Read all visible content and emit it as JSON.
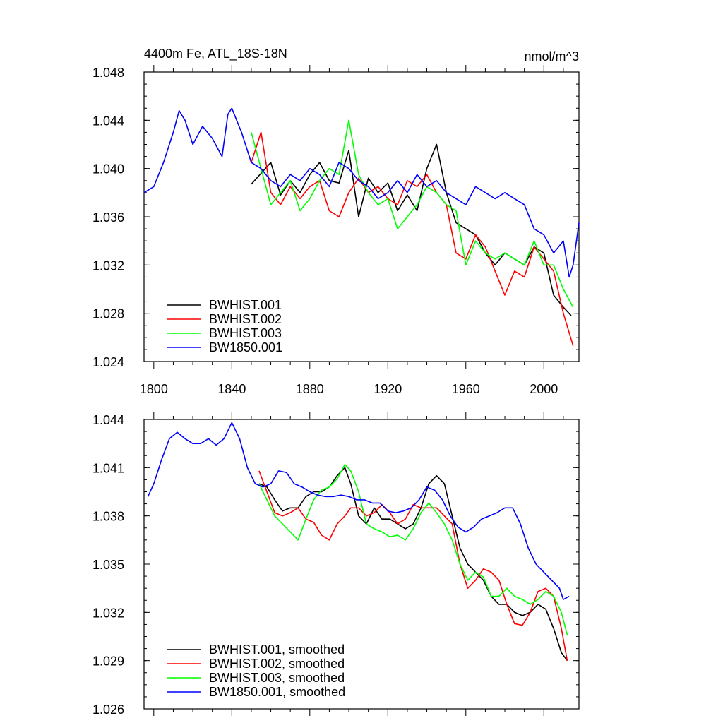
{
  "chart_data": [
    {
      "type": "line",
      "title": "4400m Fe, ATL_18S-18N",
      "units": "nmol/m^3",
      "xlim": [
        1795,
        2018
      ],
      "ylim": [
        1.024,
        1.048
      ],
      "x_ticks": [
        1800,
        1840,
        1880,
        1920,
        1960,
        2000
      ],
      "y_ticks": [
        1.024,
        1.028,
        1.032,
        1.036,
        1.04,
        1.044,
        1.048
      ],
      "y_tick_labels": [
        "1.024",
        "1.028",
        "1.032",
        "1.036",
        "1.040",
        "1.044",
        "1.048"
      ],
      "x_tick_labels": [
        "1800",
        "1840",
        "1880",
        "1920",
        "1960",
        "2000"
      ],
      "legend_position": "bottom-left",
      "series": [
        {
          "name": "BWHIST.001",
          "color": "#000000",
          "x": [
            1850,
            1855,
            1860,
            1865,
            1870,
            1875,
            1880,
            1885,
            1890,
            1895,
            1900,
            1905,
            1910,
            1915,
            1920,
            1925,
            1930,
            1935,
            1940,
            1945,
            1950,
            1955,
            1960,
            1965,
            1970,
            1975,
            1980,
            1985,
            1990,
            1995,
            2000,
            2005,
            2010,
            2014
          ],
          "values": [
            1.0387,
            1.0396,
            1.0405,
            1.0378,
            1.039,
            1.038,
            1.0395,
            1.0405,
            1.039,
            1.0388,
            1.0415,
            1.036,
            1.0392,
            1.038,
            1.0388,
            1.0365,
            1.0378,
            1.0365,
            1.04,
            1.042,
            1.038,
            1.0355,
            1.035,
            1.0345,
            1.033,
            1.032,
            1.033,
            1.0325,
            1.032,
            1.0335,
            1.033,
            1.0295,
            1.0285,
            1.0278
          ]
        },
        {
          "name": "BWHIST.002",
          "color": "#ff0000",
          "x": [
            1850,
            1855,
            1860,
            1865,
            1870,
            1875,
            1880,
            1885,
            1890,
            1895,
            1900,
            1905,
            1910,
            1915,
            1920,
            1925,
            1930,
            1935,
            1940,
            1945,
            1950,
            1955,
            1960,
            1965,
            1970,
            1975,
            1980,
            1985,
            1990,
            1995,
            2000,
            2005,
            2010,
            2015
          ],
          "values": [
            1.0405,
            1.043,
            1.038,
            1.037,
            1.0385,
            1.0375,
            1.0385,
            1.039,
            1.0365,
            1.036,
            1.038,
            1.0392,
            1.038,
            1.0385,
            1.0375,
            1.037,
            1.039,
            1.0385,
            1.0395,
            1.038,
            1.037,
            1.033,
            1.0325,
            1.0345,
            1.0335,
            1.0315,
            1.0295,
            1.0315,
            1.031,
            1.0335,
            1.0325,
            1.0315,
            1.028,
            1.0253
          ]
        },
        {
          "name": "BWHIST.003",
          "color": "#00ff00",
          "x": [
            1850,
            1855,
            1860,
            1865,
            1870,
            1875,
            1880,
            1885,
            1890,
            1895,
            1900,
            1905,
            1910,
            1915,
            1920,
            1925,
            1930,
            1935,
            1940,
            1945,
            1950,
            1955,
            1960,
            1965,
            1970,
            1975,
            1980,
            1985,
            1990,
            1995,
            2000,
            2005,
            2010,
            2015
          ],
          "values": [
            1.043,
            1.04,
            1.037,
            1.038,
            1.039,
            1.0365,
            1.0375,
            1.039,
            1.04,
            1.0395,
            1.044,
            1.0395,
            1.038,
            1.037,
            1.0375,
            1.035,
            1.036,
            1.037,
            1.0385,
            1.038,
            1.037,
            1.0365,
            1.032,
            1.034,
            1.033,
            1.0325,
            1.033,
            1.0325,
            1.032,
            1.034,
            1.032,
            1.032,
            1.03,
            1.0285
          ]
        },
        {
          "name": "BW1850.001",
          "color": "#0000ff",
          "x": [
            1795,
            1800,
            1805,
            1810,
            1813,
            1816,
            1820,
            1825,
            1830,
            1835,
            1838,
            1840,
            1845,
            1850,
            1855,
            1860,
            1865,
            1870,
            1875,
            1880,
            1885,
            1890,
            1895,
            1900,
            1905,
            1910,
            1915,
            1920,
            1925,
            1930,
            1935,
            1940,
            1945,
            1950,
            1955,
            1960,
            1965,
            1970,
            1975,
            1980,
            1985,
            1990,
            1995,
            2000,
            2005,
            2010,
            2013,
            2015,
            2018
          ],
          "values": [
            1.038,
            1.0385,
            1.0405,
            1.043,
            1.0448,
            1.044,
            1.042,
            1.0435,
            1.0425,
            1.041,
            1.0445,
            1.045,
            1.043,
            1.0405,
            1.04,
            1.039,
            1.0385,
            1.0395,
            1.039,
            1.04,
            1.0395,
            1.0385,
            1.0405,
            1.04,
            1.039,
            1.0385,
            1.0375,
            1.038,
            1.039,
            1.038,
            1.0395,
            1.0385,
            1.039,
            1.038,
            1.0375,
            1.037,
            1.0385,
            1.038,
            1.0375,
            1.038,
            1.0375,
            1.037,
            1.035,
            1.0345,
            1.033,
            1.034,
            1.031,
            1.032,
            1.0355
          ]
        }
      ]
    },
    {
      "type": "line",
      "title": "",
      "xlim": [
        1795,
        2018
      ],
      "ylim": [
        1.026,
        1.044
      ],
      "x_ticks": [
        1800,
        1840,
        1880,
        1920,
        1960,
        2000
      ],
      "y_ticks": [
        1.026,
        1.029,
        1.032,
        1.035,
        1.038,
        1.041,
        1.044
      ],
      "y_tick_labels": [
        "1.026",
        "1.029",
        "1.032",
        "1.035",
        "1.038",
        "1.041",
        "1.044"
      ],
      "legend_position": "bottom-left",
      "series": [
        {
          "name": "BWHIST.001, smoothed",
          "color": "#000000",
          "x": [
            1854,
            1858,
            1862,
            1866,
            1870,
            1874,
            1878,
            1882,
            1886,
            1890,
            1894,
            1898,
            1901,
            1905,
            1909,
            1913,
            1917,
            1921,
            1925,
            1929,
            1933,
            1937,
            1941,
            1945,
            1949,
            1953,
            1957,
            1961,
            1965,
            1969,
            1973,
            1977,
            1981,
            1985,
            1989,
            1993,
            1997,
            2001,
            2005,
            2009,
            2012
          ],
          "values": [
            1.04,
            1.0398,
            1.039,
            1.0383,
            1.0385,
            1.0385,
            1.0392,
            1.0395,
            1.0395,
            1.0398,
            1.0405,
            1.041,
            1.04,
            1.038,
            1.0375,
            1.0385,
            1.0378,
            1.0378,
            1.0375,
            1.0372,
            1.0375,
            1.0385,
            1.04,
            1.0405,
            1.04,
            1.038,
            1.036,
            1.035,
            1.0345,
            1.034,
            1.033,
            1.0325,
            1.0325,
            1.032,
            1.0318,
            1.032,
            1.0325,
            1.0322,
            1.031,
            1.0295,
            1.029
          ]
        },
        {
          "name": "BWHIST.002, smoothed",
          "color": "#ff0000",
          "x": [
            1854,
            1858,
            1862,
            1866,
            1870,
            1874,
            1878,
            1882,
            1886,
            1890,
            1894,
            1898,
            1901,
            1905,
            1909,
            1913,
            1917,
            1921,
            1925,
            1929,
            1933,
            1937,
            1941,
            1945,
            1949,
            1953,
            1957,
            1961,
            1965,
            1969,
            1973,
            1977,
            1981,
            1985,
            1989,
            1993,
            1997,
            2001,
            2005,
            2009,
            2012
          ],
          "values": [
            1.0408,
            1.0395,
            1.0382,
            1.038,
            1.0382,
            1.0385,
            1.0378,
            1.0376,
            1.0368,
            1.0365,
            1.0375,
            1.038,
            1.0385,
            1.0385,
            1.038,
            1.0382,
            1.0387,
            1.0382,
            1.0375,
            1.0378,
            1.0387,
            1.0385,
            1.0385,
            1.0385,
            1.038,
            1.0375,
            1.035,
            1.0335,
            1.034,
            1.0347,
            1.0345,
            1.034,
            1.0325,
            1.0313,
            1.0312,
            1.032,
            1.0333,
            1.0335,
            1.033,
            1.031,
            1.029
          ]
        },
        {
          "name": "BWHIST.003, smoothed",
          "color": "#00ff00",
          "x": [
            1854,
            1858,
            1862,
            1866,
            1870,
            1874,
            1878,
            1882,
            1886,
            1890,
            1894,
            1898,
            1901,
            1905,
            1909,
            1913,
            1917,
            1921,
            1925,
            1929,
            1933,
            1937,
            1941,
            1945,
            1949,
            1953,
            1957,
            1961,
            1965,
            1969,
            1973,
            1977,
            1981,
            1985,
            1989,
            1993,
            1997,
            2001,
            2005,
            2009,
            2012
          ],
          "values": [
            1.04,
            1.039,
            1.038,
            1.0375,
            1.037,
            1.0365,
            1.0378,
            1.039,
            1.0396,
            1.0398,
            1.0403,
            1.0412,
            1.0408,
            1.0395,
            1.0375,
            1.0372,
            1.037,
            1.0367,
            1.0368,
            1.0365,
            1.0372,
            1.0382,
            1.0388,
            1.0382,
            1.0375,
            1.0365,
            1.035,
            1.034,
            1.0345,
            1.0342,
            1.033,
            1.033,
            1.0335,
            1.033,
            1.0328,
            1.0325,
            1.0328,
            1.0333,
            1.033,
            1.032,
            1.0306
          ]
        },
        {
          "name": "BW1850.001, smoothed",
          "color": "#0000ff",
          "x": [
            1797,
            1800,
            1804,
            1808,
            1812,
            1816,
            1820,
            1824,
            1828,
            1832,
            1836,
            1840,
            1844,
            1848,
            1852,
            1856,
            1860,
            1864,
            1868,
            1872,
            1876,
            1880,
            1884,
            1888,
            1892,
            1896,
            1900,
            1904,
            1908,
            1912,
            1916,
            1920,
            1924,
            1928,
            1932,
            1936,
            1940,
            1944,
            1948,
            1952,
            1956,
            1960,
            1964,
            1968,
            1972,
            1976,
            1980,
            1984,
            1988,
            1992,
            1996,
            2000,
            2004,
            2008,
            2010,
            2013
          ],
          "values": [
            1.0392,
            1.04,
            1.0415,
            1.0428,
            1.0432,
            1.0428,
            1.0425,
            1.0425,
            1.0428,
            1.0424,
            1.0428,
            1.0438,
            1.0428,
            1.041,
            1.04,
            1.0398,
            1.04,
            1.0408,
            1.0407,
            1.04,
            1.0398,
            1.0395,
            1.0393,
            1.0392,
            1.0392,
            1.0393,
            1.0392,
            1.039,
            1.039,
            1.0388,
            1.0388,
            1.0383,
            1.0382,
            1.0383,
            1.0385,
            1.039,
            1.0398,
            1.0396,
            1.039,
            1.038,
            1.0373,
            1.037,
            1.0373,
            1.0378,
            1.038,
            1.0382,
            1.0385,
            1.0385,
            1.0375,
            1.036,
            1.035,
            1.0345,
            1.034,
            1.0335,
            1.0328,
            1.033
          ]
        }
      ]
    }
  ]
}
